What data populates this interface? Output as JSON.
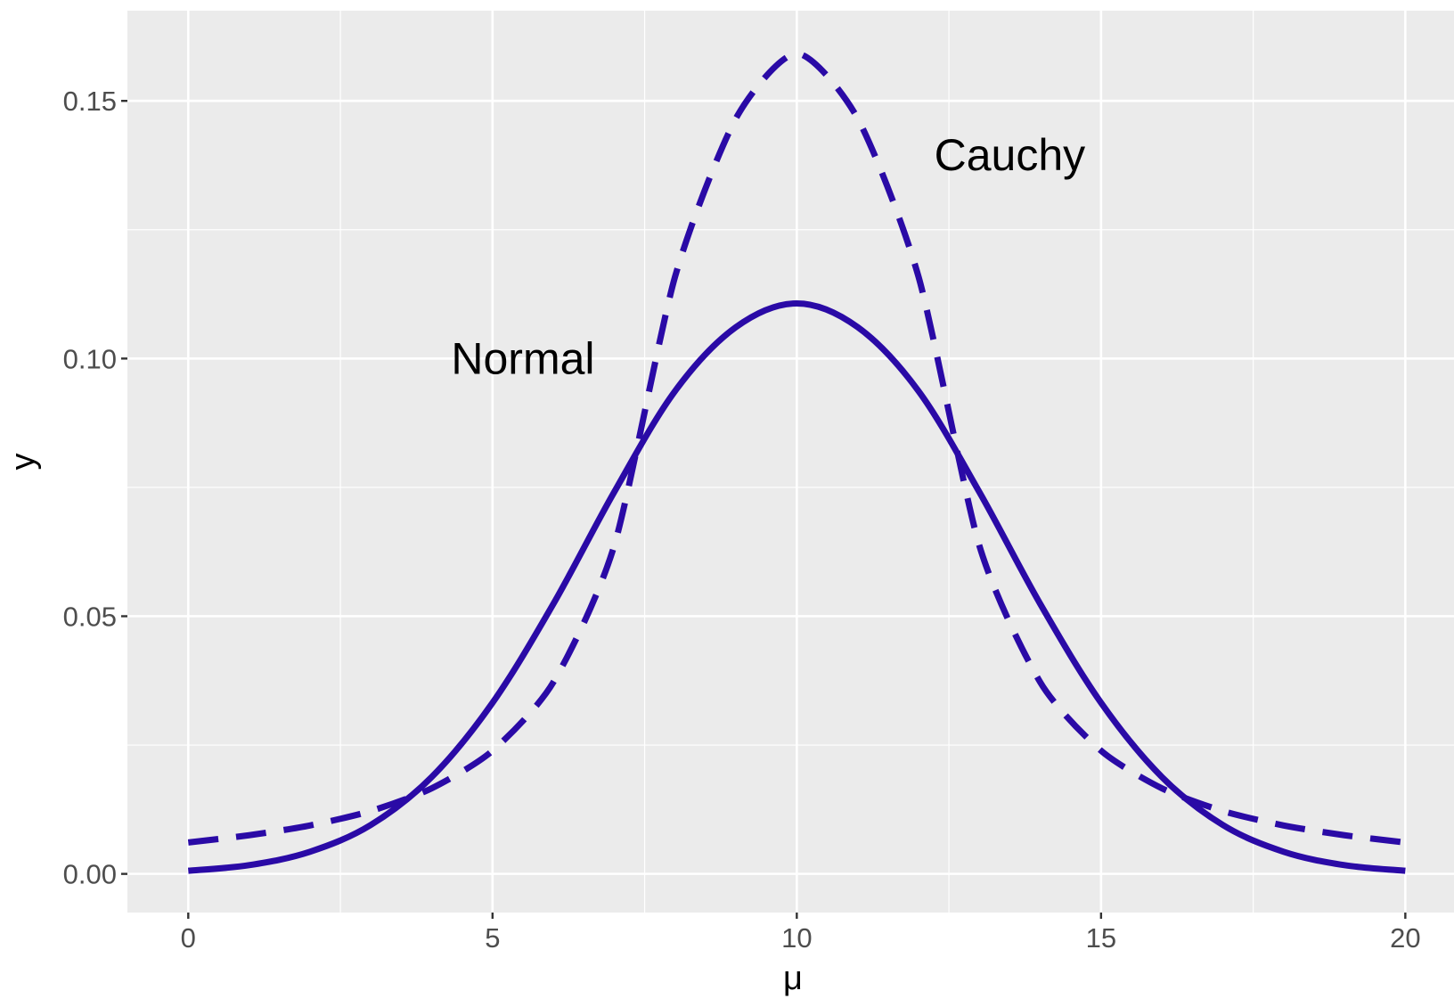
{
  "chart_data": {
    "type": "line",
    "xlabel": "μ",
    "ylabel": "y",
    "xlim": [
      -1,
      20.8
    ],
    "ylim": [
      -0.0075,
      0.1675
    ],
    "x_ticks": [
      0,
      5,
      10,
      15,
      20
    ],
    "x_tick_labels": [
      "0",
      "5",
      "10",
      "15",
      "20"
    ],
    "y_ticks": [
      0.0,
      0.05,
      0.1,
      0.15
    ],
    "y_tick_labels": [
      "0.00",
      "0.05",
      "0.10",
      "0.15"
    ],
    "grid": true,
    "colors": {
      "panel_bg": "#ebebeb",
      "grid": "#ffffff",
      "line": "#2a0aa6",
      "tick_text": "#4d4d4d",
      "tick_mark": "#333333"
    },
    "series": [
      {
        "style": "solid",
        "x": [
          0,
          1,
          2,
          3,
          4,
          5,
          6,
          7,
          8,
          9,
          10,
          11,
          12,
          13,
          14,
          15,
          16,
          17,
          18,
          19,
          20
        ],
        "values": [
          0.0006,
          0.0017,
          0.0043,
          0.0095,
          0.0188,
          0.0332,
          0.0524,
          0.0741,
          0.0937,
          0.1061,
          0.1107,
          0.1061,
          0.0937,
          0.0741,
          0.0524,
          0.0332,
          0.0188,
          0.0095,
          0.0043,
          0.0017,
          0.0006
        ]
      },
      {
        "style": "dashed",
        "x": [
          0,
          1,
          2,
          3,
          4,
          5,
          6,
          7,
          8,
          9,
          10,
          11,
          12,
          13,
          14,
          15,
          16,
          17,
          18,
          19,
          20
        ],
        "values": [
          0.0061,
          0.0075,
          0.0094,
          0.0122,
          0.0166,
          0.0239,
          0.0372,
          0.0637,
          0.1159,
          0.1466,
          0.1592,
          0.1466,
          0.1159,
          0.0637,
          0.0372,
          0.0239,
          0.0166,
          0.0122,
          0.0094,
          0.0075,
          0.0061
        ]
      }
    ],
    "annotations": [
      {
        "text": "Cauchy",
        "x": 13.5,
        "y": 0.1395
      },
      {
        "text": "Normal",
        "x": 5.5,
        "y": 0.1
      }
    ]
  }
}
